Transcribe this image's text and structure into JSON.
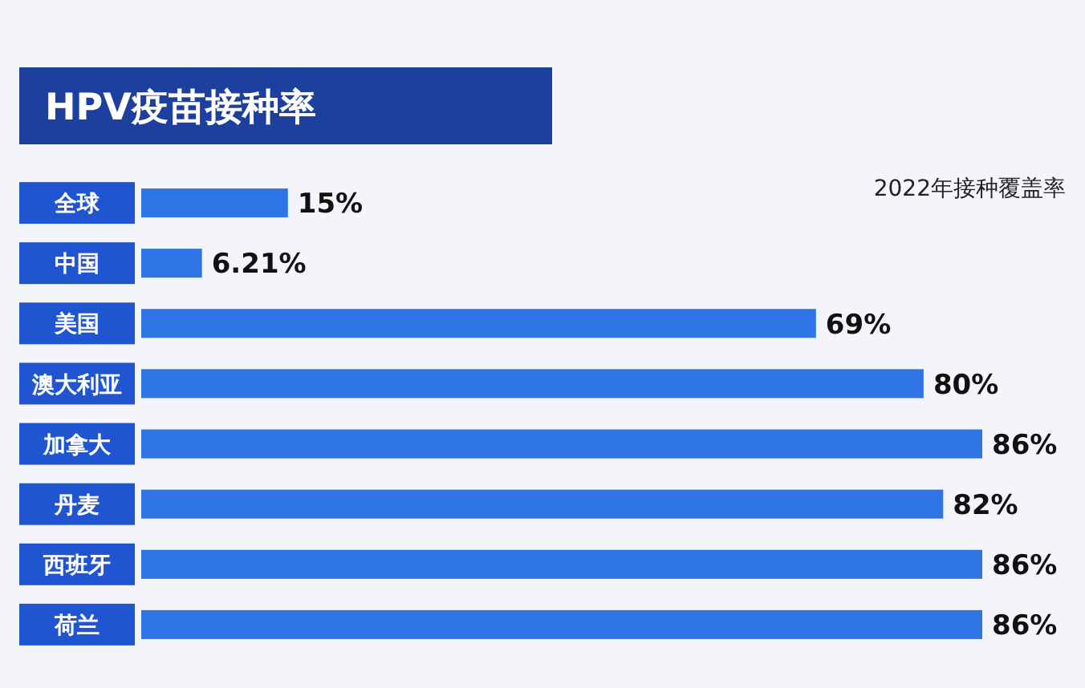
{
  "chart_data": {
    "type": "bar",
    "orientation": "horizontal",
    "title": "HPV疫苗接种率",
    "subtitle": "2022年接种覆盖率",
    "categories": [
      "全球",
      "中国",
      "美国",
      "澳大利亚",
      "加拿大",
      "丹麦",
      "西班牙",
      "荷兰"
    ],
    "values": [
      15,
      6.21,
      69,
      80,
      86,
      82,
      86,
      86
    ],
    "value_labels": [
      "15%",
      "6.21%",
      "69%",
      "80%",
      "86%",
      "82%",
      "86%",
      "86%"
    ],
    "color": "#2f74e4"
  }
}
